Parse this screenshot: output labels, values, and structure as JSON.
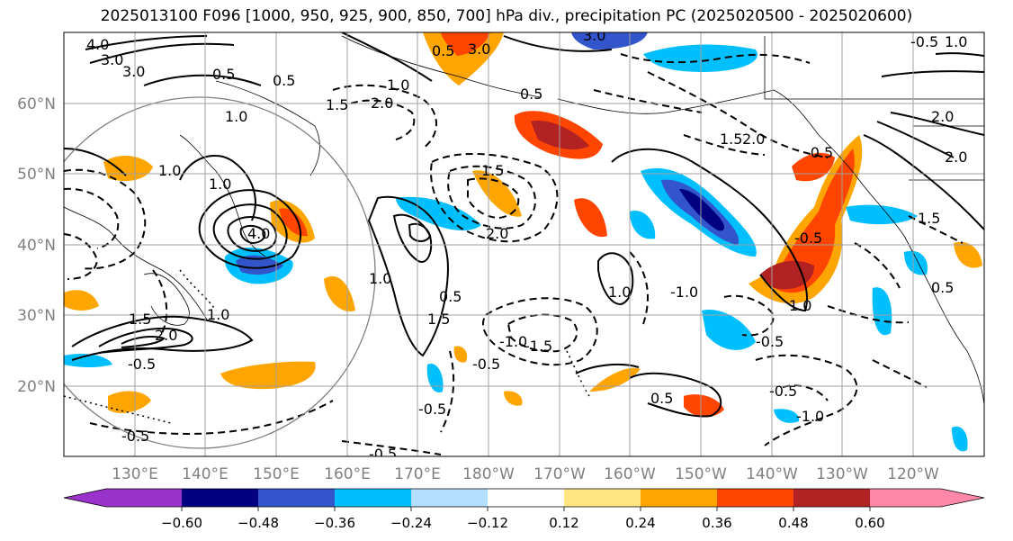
{
  "title": "2025013100 F096 [1000, 950, 925, 900, 850, 700] hPa div., precipitation PC (2025020500 - 2025020600)",
  "map": {
    "lat_labels": [
      "60°N",
      "50°N",
      "40°N",
      "30°N",
      "20°N"
    ],
    "lon_labels": [
      "130°E",
      "140°E",
      "150°E",
      "160°E",
      "170°E",
      "180°W",
      "170°W",
      "160°W",
      "150°W",
      "140°W",
      "130°W",
      "120°W"
    ],
    "contour_labels": [
      "4.0",
      "3.0",
      "0.5",
      "1.0",
      "1.5",
      "2.0",
      "-0.5",
      "-1.0",
      "-1.5",
      "-2.0"
    ]
  },
  "colorbar": {
    "ticks": [
      "−0.60",
      "−0.48",
      "−0.36",
      "−0.24",
      "−0.12",
      "0.12",
      "0.24",
      "0.36",
      "0.48",
      "0.60"
    ],
    "colors": [
      "#9933cc",
      "#000080",
      "#3355cc",
      "#00bfff",
      "#b3e0ff",
      "#ffffff",
      "#ffe680",
      "#ffa500",
      "#ff4500",
      "#b22222",
      "#ff88aa"
    ]
  }
}
